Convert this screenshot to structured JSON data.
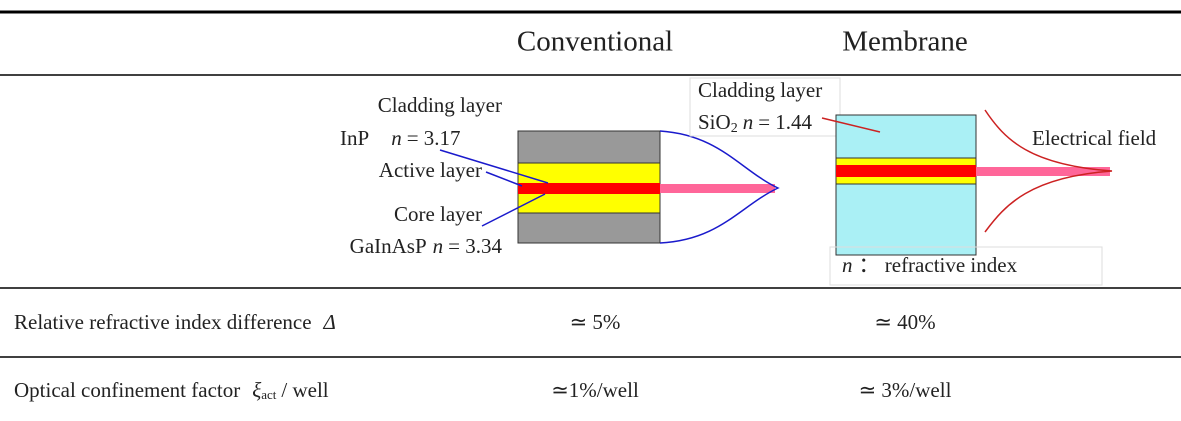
{
  "header": {
    "columns": [
      "Conventional",
      "Membrane"
    ]
  },
  "diagram": {
    "conventional": {
      "cladding": {
        "label": "Cladding layer",
        "material": "InP",
        "index_symbol": "n",
        "index_value": "= 3.17"
      },
      "active": "Active layer",
      "core": {
        "label": "Core layer",
        "material": "GaInAsP",
        "index_symbol": "n",
        "index_value": "= 3.34"
      }
    },
    "membrane": {
      "cladding": {
        "label": "Cladding layer",
        "material": "SiO",
        "material_sub": "2",
        "index_symbol": "n",
        "index_value": "= 1.44"
      },
      "field": "Electrical field",
      "note_symbol": "n",
      "note": "： refractive index"
    }
  },
  "table": {
    "rows": [
      {
        "label": "Relative refractive index difference",
        "symbol": "Δ",
        "values": [
          "≃ 5%",
          "≃ 40%"
        ]
      },
      {
        "label": "Optical confinement factor",
        "symbol": "ξ",
        "symbol_sub": "act",
        "suffix": "/ well",
        "values": [
          "≃1%/well",
          "≃ 3%/well"
        ]
      }
    ]
  }
}
